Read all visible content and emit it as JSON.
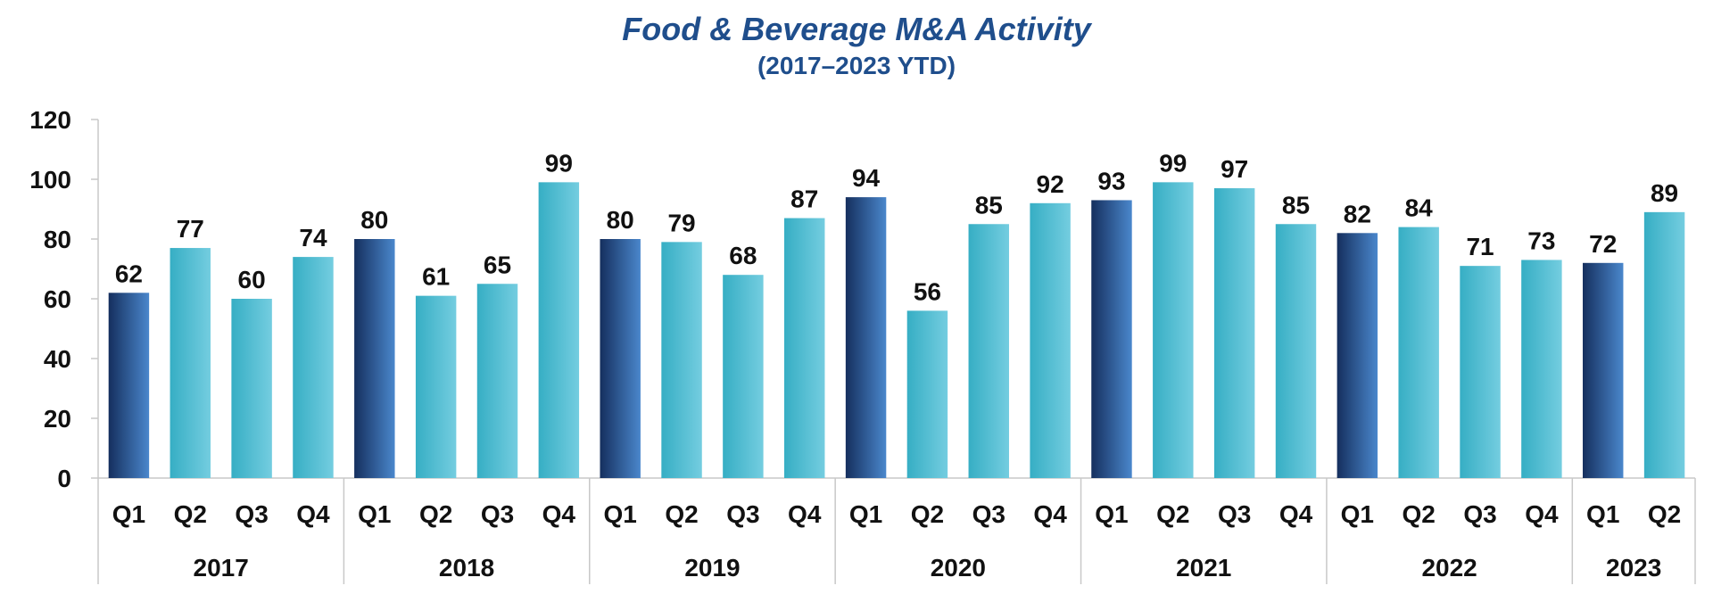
{
  "title": "Food & Beverage M&A Activity",
  "subtitle": "(2017–2023 YTD)",
  "chart_data": {
    "type": "bar",
    "title": "Food & Beverage M&A Activity",
    "subtitle": "(2017–2023 YTD)",
    "xlabel": "",
    "ylabel": "",
    "ylim": [
      0,
      120
    ],
    "yticks": [
      0,
      20,
      40,
      60,
      80,
      100,
      120
    ],
    "grid": false,
    "legend": "none",
    "groups": [
      {
        "year": "2017",
        "quarters": [
          "Q1",
          "Q2",
          "Q3",
          "Q4"
        ],
        "values": [
          62,
          77,
          60,
          74
        ]
      },
      {
        "year": "2018",
        "quarters": [
          "Q1",
          "Q2",
          "Q3",
          "Q4"
        ],
        "values": [
          80,
          61,
          65,
          99
        ]
      },
      {
        "year": "2019",
        "quarters": [
          "Q1",
          "Q2",
          "Q3",
          "Q4"
        ],
        "values": [
          80,
          79,
          68,
          87
        ]
      },
      {
        "year": "2020",
        "quarters": [
          "Q1",
          "Q2",
          "Q3",
          "Q4"
        ],
        "values": [
          94,
          56,
          85,
          92
        ]
      },
      {
        "year": "2021",
        "quarters": [
          "Q1",
          "Q2",
          "Q3",
          "Q4"
        ],
        "values": [
          93,
          99,
          97,
          85
        ]
      },
      {
        "year": "2022",
        "quarters": [
          "Q1",
          "Q2",
          "Q3",
          "Q4"
        ],
        "values": [
          82,
          84,
          71,
          73
        ]
      },
      {
        "year": "2023",
        "quarters": [
          "Q1",
          "Q2"
        ],
        "values": [
          72,
          89
        ]
      }
    ],
    "colors": {
      "q1_dark": "#152f5e",
      "q1_light": "#4a87cc",
      "other_dark": "#36aec4",
      "other_light": "#74cde0",
      "title": "#1f4e8c",
      "axis": "#c8c8c8",
      "text": "#111111"
    }
  }
}
